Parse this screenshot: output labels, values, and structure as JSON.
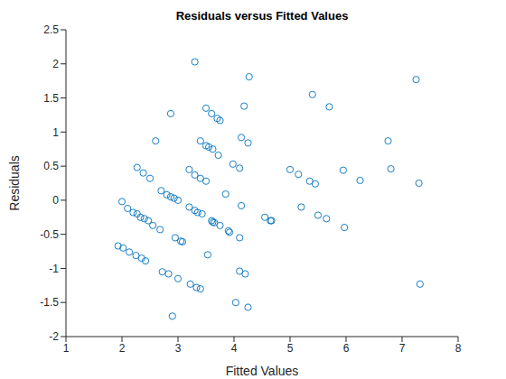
{
  "chart_data": {
    "type": "scatter",
    "title": "Residuals versus Fitted Values",
    "x_label": "Fitted Values",
    "y_label": "Residuals",
    "color": "#0072bd",
    "marker": "circle",
    "grid": false,
    "xlim": [
      1,
      8
    ],
    "xticks": [
      1,
      2,
      3,
      4,
      5,
      6,
      7,
      8
    ],
    "ylim": [
      -2,
      2.5
    ],
    "yticks": [
      -2,
      -1.5,
      -1,
      -0.5,
      0,
      0.5,
      1,
      1.5,
      2,
      2.5
    ],
    "x": [
      3.3,
      4.27,
      7.25,
      5.4,
      5.7,
      4.18,
      3.5,
      2.87,
      3.6,
      3.7,
      3.75,
      4.13,
      4.25,
      3.4,
      3.5,
      3.55,
      3.62,
      3.72,
      2.6,
      6.75,
      6.8,
      5.95,
      6.25,
      5.0,
      5.15,
      5.35,
      5.45,
      7.3,
      3.2,
      3.3,
      3.4,
      3.5,
      3.98,
      4.1,
      2.27,
      2.38,
      2.5,
      3.85,
      2.7,
      2.8,
      2.87,
      2.93,
      3.0,
      2.0,
      2.1,
      2.2,
      2.27,
      2.33,
      2.4,
      2.47,
      2.55,
      2.68,
      3.2,
      3.3,
      3.35,
      3.43,
      3.6,
      3.62,
      3.65,
      3.75,
      3.9,
      3.92,
      4.13,
      4.1,
      4.55,
      4.65,
      4.67,
      5.2,
      5.5,
      5.65,
      5.97,
      2.95,
      3.05,
      3.08,
      3.53,
      1.93,
      2.02,
      2.13,
      2.25,
      2.35,
      2.42,
      2.72,
      2.83,
      3.0,
      3.22,
      3.33,
      3.4,
      4.1,
      4.2,
      7.32,
      4.03,
      4.25,
      2.9
    ],
    "values": [
      2.03,
      1.81,
      1.77,
      1.55,
      1.37,
      1.38,
      1.35,
      1.27,
      1.27,
      1.2,
      1.17,
      0.92,
      0.84,
      0.87,
      0.8,
      0.78,
      0.75,
      0.66,
      0.87,
      0.87,
      0.46,
      0.44,
      0.29,
      0.45,
      0.38,
      0.28,
      0.24,
      0.25,
      0.45,
      0.37,
      0.32,
      0.28,
      0.53,
      0.47,
      0.48,
      0.4,
      0.32,
      0.09,
      0.14,
      0.08,
      0.05,
      0.03,
      0.0,
      -0.02,
      -0.12,
      -0.18,
      -0.2,
      -0.25,
      -0.27,
      -0.3,
      -0.37,
      -0.43,
      -0.1,
      -0.15,
      -0.18,
      -0.2,
      -0.3,
      -0.32,
      -0.33,
      -0.37,
      -0.45,
      -0.47,
      -0.08,
      -0.55,
      -0.25,
      -0.3,
      -0.3,
      -0.1,
      -0.22,
      -0.27,
      -0.4,
      -0.55,
      -0.6,
      -0.61,
      -0.8,
      -0.67,
      -0.7,
      -0.76,
      -0.81,
      -0.85,
      -0.89,
      -1.05,
      -1.08,
      -1.15,
      -1.23,
      -1.28,
      -1.3,
      -1.04,
      -1.08,
      -1.23,
      -1.5,
      -1.57,
      -1.7
    ]
  }
}
